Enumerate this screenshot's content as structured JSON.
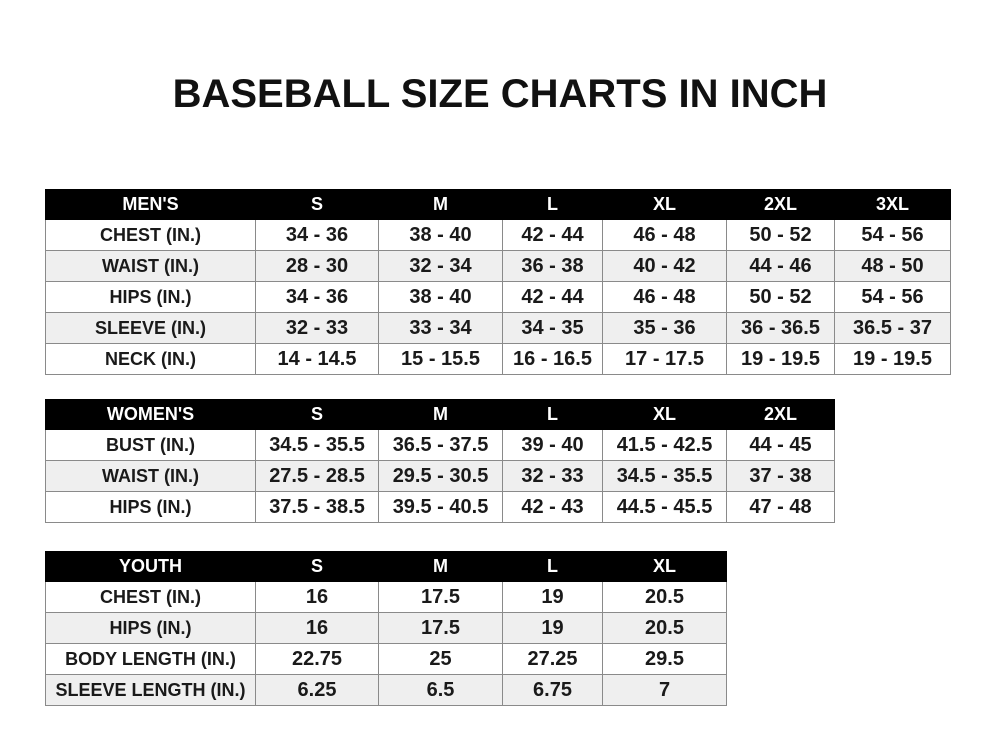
{
  "title": "BASEBALL SIZE CHARTS IN INCH",
  "tables": {
    "men": {
      "header": [
        "MEN'S",
        "S",
        "M",
        "L",
        "XL",
        "2XL",
        "3XL"
      ],
      "rows": [
        [
          "CHEST (IN.)",
          "34 - 36",
          "38 - 40",
          "42 - 44",
          "46 - 48",
          "50 - 52",
          "54 - 56"
        ],
        [
          "WAIST (IN.)",
          "28 - 30",
          "32 - 34",
          "36 - 38",
          "40 - 42",
          "44 - 46",
          "48 - 50"
        ],
        [
          "HIPS (IN.)",
          "34 - 36",
          "38 - 40",
          "42 - 44",
          "46 - 48",
          "50 - 52",
          "54 - 56"
        ],
        [
          "SLEEVE (IN.)",
          "32 - 33",
          "33 - 34",
          "34 - 35",
          "35 - 36",
          "36 - 36.5",
          "36.5 - 37"
        ],
        [
          "NECK (IN.)",
          "14 - 14.5",
          "15 - 15.5",
          "16 - 16.5",
          "17 - 17.5",
          "19 - 19.5",
          "19 - 19.5"
        ]
      ]
    },
    "women": {
      "header": [
        "WOMEN'S",
        "S",
        "M",
        "L",
        "XL",
        "2XL"
      ],
      "rows": [
        [
          "BUST (IN.)",
          "34.5 - 35.5",
          "36.5 - 37.5",
          "39 - 40",
          "41.5 - 42.5",
          "44 - 45"
        ],
        [
          "WAIST (IN.)",
          "27.5 - 28.5",
          "29.5 - 30.5",
          "32 - 33",
          "34.5 - 35.5",
          "37 - 38"
        ],
        [
          "HIPS (IN.)",
          "37.5 - 38.5",
          "39.5 - 40.5",
          "42 - 43",
          "44.5 - 45.5",
          "47 - 48"
        ]
      ]
    },
    "youth": {
      "header": [
        "YOUTH",
        "S",
        "M",
        "L",
        "XL"
      ],
      "rows": [
        [
          "CHEST (IN.)",
          "16",
          "17.5",
          "19",
          "20.5"
        ],
        [
          "HIPS (IN.)",
          "16",
          "17.5",
          "19",
          "20.5"
        ],
        [
          "BODY LENGTH (IN.)",
          "22.75",
          "25",
          "27.25",
          "29.5"
        ],
        [
          "SLEEVE LENGTH (IN.)",
          "6.25",
          "6.5",
          "6.75",
          "7"
        ]
      ]
    }
  },
  "colors": {
    "header_bg": "#000000",
    "header_text": "#ffffff",
    "alt_row": "#efefef"
  }
}
